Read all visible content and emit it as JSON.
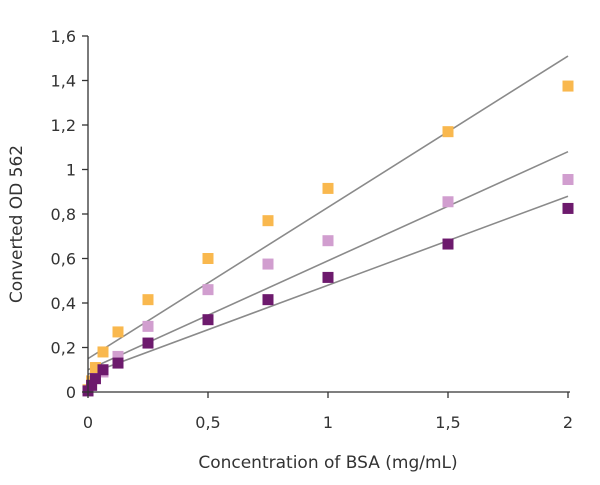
{
  "chart_data": {
    "type": "scatter",
    "title": "",
    "xlabel": "Concentration of BSA (mg/mL)",
    "ylabel": "Converted OD 562",
    "xlim": [
      0,
      2
    ],
    "ylim": [
      0,
      1.6
    ],
    "x_ticks": [
      {
        "value": 0,
        "label": "0"
      },
      {
        "value": 0.5,
        "label": "0,5"
      },
      {
        "value": 1,
        "label": "1"
      },
      {
        "value": 1.5,
        "label": "1,5"
      },
      {
        "value": 2,
        "label": "2"
      }
    ],
    "y_ticks": [
      {
        "value": 0,
        "label": "0"
      },
      {
        "value": 0.2,
        "label": "0,2"
      },
      {
        "value": 0.4,
        "label": "0,4"
      },
      {
        "value": 0.6,
        "label": "0,6"
      },
      {
        "value": 0.8,
        "label": "0,8"
      },
      {
        "value": 1,
        "label": "1"
      },
      {
        "value": 1.2,
        "label": "1,2"
      },
      {
        "value": 1.4,
        "label": "1,4"
      },
      {
        "value": 1.6,
        "label": "1,6"
      }
    ],
    "grid": false,
    "legend": "none",
    "marker": "square",
    "trendline_color": "#8a8a8a",
    "series": [
      {
        "color": "#f9b84e",
        "points": [
          [
            0,
            0.01
          ],
          [
            0.015,
            0.05
          ],
          [
            0.031,
            0.11
          ],
          [
            0.0625,
            0.18
          ],
          [
            0.125,
            0.27
          ],
          [
            0.25,
            0.415
          ],
          [
            0.5,
            0.6
          ],
          [
            0.75,
            0.77
          ],
          [
            1,
            0.915
          ],
          [
            1.5,
            1.17
          ],
          [
            2,
            1.375
          ]
        ],
        "trendline": {
          "intercept": 0.15,
          "slope": 0.68
        }
      },
      {
        "color": "#d19ecf",
        "points": [
          [
            0,
            0.005
          ],
          [
            0.015,
            0.03
          ],
          [
            0.031,
            0.06
          ],
          [
            0.0625,
            0.09
          ],
          [
            0.125,
            0.16
          ],
          [
            0.25,
            0.295
          ],
          [
            0.5,
            0.46
          ],
          [
            0.75,
            0.575
          ],
          [
            1,
            0.68
          ],
          [
            1.5,
            0.855
          ],
          [
            2,
            0.955
          ]
        ],
        "trendline": {
          "intercept": 0.1,
          "slope": 0.49
        }
      },
      {
        "color": "#6d1a6d",
        "points": [
          [
            0,
            0.005
          ],
          [
            0.015,
            0.03
          ],
          [
            0.031,
            0.06
          ],
          [
            0.0625,
            0.1
          ],
          [
            0.125,
            0.13
          ],
          [
            0.25,
            0.22
          ],
          [
            0.5,
            0.325
          ],
          [
            0.75,
            0.415
          ],
          [
            1,
            0.515
          ],
          [
            1.5,
            0.665
          ],
          [
            2,
            0.825
          ]
        ],
        "trendline": {
          "intercept": 0.08,
          "slope": 0.4
        }
      }
    ]
  }
}
